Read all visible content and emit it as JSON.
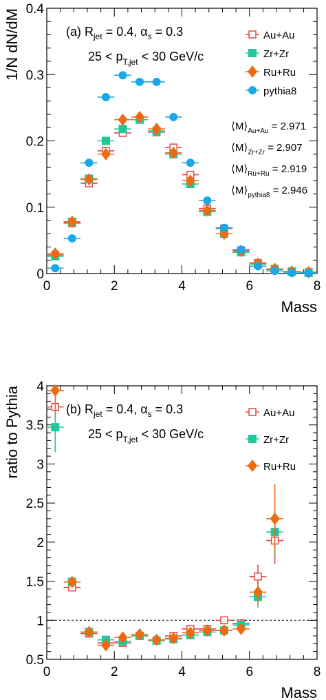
{
  "chart_data": [
    {
      "type": "scatter",
      "panel_label": "(a)",
      "annotation": {
        "line1": {
          "r": "R",
          "r_sub": "jet",
          "r_eq": " = 0.4, ",
          "a": "α",
          "a_sub": "s",
          "a_eq": " = 0.3"
        },
        "line2": {
          "pre": "25 < p",
          "sub": "T,jet",
          "post": " < 30 GeV/c"
        }
      },
      "xlabel": "Mass",
      "ylabel": "1/N dN/dM",
      "xlim": [
        0,
        8
      ],
      "ylim": [
        0,
        0.4
      ],
      "xticks": [
        0,
        2,
        4,
        6,
        8
      ],
      "yticks": [
        0,
        0.1,
        0.2,
        0.3,
        0.4
      ],
      "x": [
        0.25,
        0.75,
        1.25,
        1.75,
        2.25,
        2.75,
        3.25,
        3.75,
        4.25,
        4.75,
        5.25,
        5.75,
        6.25,
        6.75,
        7.25,
        7.75
      ],
      "xerr": 0.25,
      "series": [
        {
          "name": "Au+Au",
          "marker": "open-square",
          "color": "#e04848",
          "values": [
            0.028,
            0.076,
            0.136,
            0.185,
            0.212,
            0.232,
            0.213,
            0.19,
            0.149,
            0.098,
            0.068,
            0.035,
            0.016,
            0.007,
            0.003,
            0.002
          ]
        },
        {
          "name": "Zr+Zr",
          "marker": "filled-square",
          "color": "#22c69a",
          "values": [
            0.026,
            0.078,
            0.143,
            0.2,
            0.218,
            0.232,
            0.215,
            0.18,
            0.135,
            0.093,
            0.06,
            0.032,
            0.014,
            0.006,
            0.003,
            0.001
          ]
        },
        {
          "name": "Ru+Ru",
          "marker": "filled-diamond",
          "color": "#f06a12",
          "values": [
            0.03,
            0.078,
            0.142,
            0.18,
            0.232,
            0.236,
            0.218,
            0.182,
            0.14,
            0.095,
            0.06,
            0.034,
            0.015,
            0.007,
            0.003,
            0.002
          ]
        },
        {
          "name": "pythia8",
          "marker": "filled-circle",
          "color": "#1aa8e8",
          "values": [
            0.008,
            0.053,
            0.167,
            0.266,
            0.299,
            0.289,
            0.289,
            0.236,
            0.167,
            0.11,
            0.069,
            0.036,
            0.011,
            0.004,
            0.001,
            0.001
          ]
        }
      ],
      "means": [
        {
          "label": "M",
          "sub": "Au+Au",
          "value": "2.971"
        },
        {
          "label": "M",
          "sub": "Zr+Zr",
          "value": "2.907"
        },
        {
          "label": "M",
          "sub": "Ru+Ru",
          "value": "2.919"
        },
        {
          "label": "M",
          "sub": "pythia8",
          "value": "2.946"
        }
      ]
    },
    {
      "type": "scatter",
      "panel_label": "(b)",
      "annotation": {
        "line1": {
          "r": "R",
          "r_sub": "jet",
          "r_eq": " = 0.4, ",
          "a": "α",
          "a_sub": "s",
          "a_eq": " = 0.3"
        },
        "line2": {
          "pre": "25 < p",
          "sub": "T,jet",
          "post": " < 30 GeV/c"
        }
      },
      "xlabel": "Mass",
      "ylabel": "ratio to Pythia",
      "xlim": [
        0,
        8
      ],
      "ylim": [
        0.5,
        4
      ],
      "xticks": [
        0,
        2,
        4,
        6,
        8
      ],
      "yticks": [
        0.5,
        1,
        1.5,
        2,
        2.5,
        3,
        3.5,
        4
      ],
      "reference_line": 1,
      "x": [
        0.25,
        0.75,
        1.25,
        1.75,
        2.25,
        2.75,
        3.25,
        3.75,
        4.25,
        4.75,
        5.25,
        5.75,
        6.25,
        6.75
      ],
      "xerr": 0.25,
      "series": [
        {
          "name": "Au+Au",
          "marker": "open-square",
          "color": "#e04848",
          "values": [
            3.73,
            1.42,
            0.83,
            0.71,
            0.71,
            0.8,
            0.74,
            0.8,
            0.89,
            0.89,
            1.0,
            0.96,
            1.56,
            2.02
          ],
          "yerr": [
            0.35,
            0.05,
            0.03,
            0.03,
            0.02,
            0.02,
            0.02,
            0.03,
            0.03,
            0.04,
            0.05,
            0.06,
            0.15,
            0.3
          ]
        },
        {
          "name": "Zr+Zr",
          "marker": "filled-square",
          "color": "#22c69a",
          "values": [
            3.47,
            1.49,
            0.85,
            0.75,
            0.73,
            0.8,
            0.74,
            0.76,
            0.81,
            0.85,
            0.87,
            0.94,
            1.3,
            2.13
          ],
          "yerr": [
            0.32,
            0.05,
            0.03,
            0.03,
            0.02,
            0.02,
            0.02,
            0.03,
            0.03,
            0.04,
            0.05,
            0.06,
            0.14,
            0.3
          ]
        },
        {
          "name": "Ru+Ru",
          "marker": "filled-diamond",
          "color": "#f06a12",
          "values": [
            3.94,
            1.49,
            0.85,
            0.68,
            0.78,
            0.82,
            0.75,
            0.77,
            0.84,
            0.87,
            0.87,
            0.89,
            1.36,
            2.3
          ],
          "yerr": [
            0.3,
            0.05,
            0.03,
            0.03,
            0.02,
            0.02,
            0.02,
            0.03,
            0.03,
            0.04,
            0.05,
            0.06,
            0.15,
            0.44
          ]
        }
      ]
    }
  ]
}
